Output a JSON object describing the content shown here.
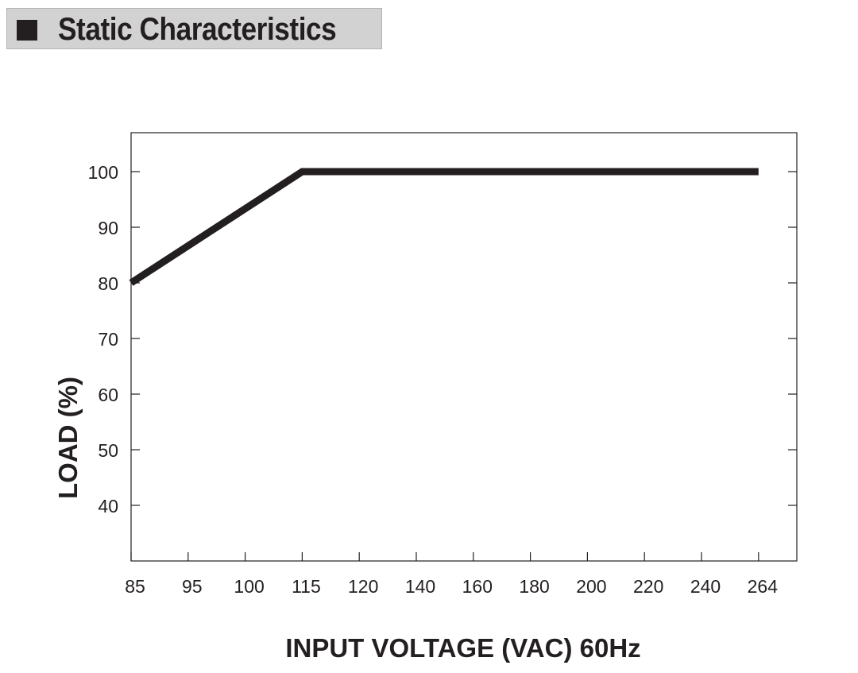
{
  "header": {
    "title": "Static Characteristics"
  },
  "chart_data": {
    "type": "line",
    "title": "",
    "xlabel": "INPUT VOLTAGE (VAC) 60Hz",
    "ylabel": "LOAD (%)",
    "x_tick_labels": [
      "85",
      "95",
      "100",
      "115",
      "120",
      "140",
      "160",
      "180",
      "200",
      "220",
      "240",
      "264"
    ],
    "y_ticks": [
      40,
      50,
      60,
      70,
      80,
      90,
      100
    ],
    "ylim": [
      30,
      107
    ],
    "grid": false,
    "series": [
      {
        "x": [
          "85",
          "115",
          "264"
        ],
        "values": [
          80,
          100,
          100
        ]
      }
    ],
    "colors": {
      "line": "#231f20",
      "frame": "#231f20"
    }
  }
}
